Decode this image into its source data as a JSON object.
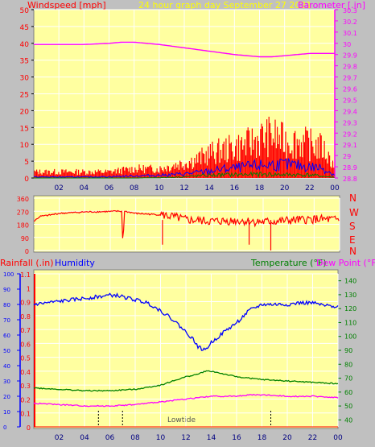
{
  "colors": {
    "background": "#c0c0c0",
    "plot_bg": "#ffffa0",
    "wind": "#ff0000",
    "gust_fill": "#ff0000",
    "wind_avg": "#0000ff",
    "wind_low": "#008000",
    "barometer": "#ff00ff",
    "title": "#ffff00",
    "humidity": "#0000ff",
    "temperature": "#008000",
    "dewpoint": "#ff00ff",
    "rainfall": "#ff0000",
    "grid": "#ffffff",
    "tide_marks": "#000000"
  },
  "header": {
    "wind_label": "Windspeed [mph]",
    "title": "24 hour graph day   September 27 2021",
    "baro_label": "Barometer [.in]"
  },
  "mid_header": {
    "rain_label": "Rainfall (.in)",
    "humidity_label": "Humidity",
    "temp_label": "Temperature (°F)",
    "dew_label": "Dew Point (°F)"
  },
  "tide_label": "Lowtide",
  "direction_letters": [
    "N",
    "W",
    "S",
    "E",
    "N"
  ],
  "chart_data": [
    {
      "type": "line",
      "id": "wind_baro",
      "x_ticks": [
        "02",
        "04",
        "06",
        "08",
        "10",
        "12",
        "14",
        "16",
        "18",
        "20",
        "22",
        "00"
      ],
      "y_left_ticks": [
        "0",
        "5",
        "10",
        "15",
        "20",
        "25",
        "30",
        "35",
        "40",
        "45",
        "50"
      ],
      "ylim_left": [
        0,
        50
      ],
      "y_right_ticks": [
        "28.8",
        "28.9",
        "29",
        "29.1",
        "29.2",
        "29.3",
        "29.4",
        "29.5",
        "29.6",
        "29.7",
        "29.8",
        "29.9",
        "30",
        "30.1",
        "30.2",
        "30.3"
      ],
      "ylim_right": [
        28.8,
        30.3
      ],
      "series": [
        {
          "name": "Barometer",
          "axis": "right",
          "x": [
            0,
            2,
            4,
            6,
            7,
            8,
            9,
            10,
            12,
            14,
            16,
            17,
            18,
            19,
            20,
            22,
            24
          ],
          "values": [
            29.99,
            29.99,
            29.99,
            30.0,
            30.01,
            30.01,
            30.0,
            29.99,
            29.96,
            29.93,
            29.9,
            29.89,
            29.88,
            29.88,
            29.89,
            29.91,
            29.91
          ]
        },
        {
          "name": "Gust",
          "axis": "left",
          "x": [
            0,
            2,
            4,
            6,
            8,
            10,
            11,
            12,
            13,
            14,
            15,
            16,
            17,
            18,
            19,
            20,
            21,
            22,
            23,
            24
          ],
          "values": [
            2,
            2,
            2,
            2,
            3,
            3,
            4,
            5,
            6,
            8,
            9,
            10,
            11,
            13,
            14,
            12,
            12,
            11,
            10,
            4
          ]
        },
        {
          "name": "Wind",
          "axis": "left",
          "x": [
            0,
            2,
            4,
            6,
            8,
            10,
            12,
            13,
            14,
            15,
            16,
            17,
            18,
            19,
            20,
            21,
            22,
            23,
            24
          ],
          "values": [
            0.3,
            0.3,
            0.3,
            0.4,
            0.6,
            0.8,
            1.2,
            1.6,
            2,
            2.6,
            2.9,
            3.3,
            3.7,
            4,
            4,
            3.7,
            3.3,
            3,
            0.9
          ]
        },
        {
          "name": "Wind Low",
          "axis": "left",
          "x": [
            0,
            2,
            4,
            6,
            8,
            10,
            12,
            14,
            16,
            18,
            20,
            22,
            24
          ],
          "values": [
            0,
            0,
            0,
            0,
            0,
            0.1,
            0.4,
            0.9,
            1.1,
            1.2,
            1.1,
            1,
            0.2
          ]
        }
      ]
    },
    {
      "type": "line",
      "id": "wind_direction",
      "x_ticks": [
        "02",
        "04",
        "06",
        "08",
        "10",
        "12",
        "14",
        "16",
        "18",
        "20",
        "22",
        "00"
      ],
      "y_ticks": [
        "360",
        "270",
        "180",
        "90",
        "0"
      ],
      "ylim": [
        0,
        360
      ],
      "series": [
        {
          "name": "Direction",
          "x": [
            0,
            0.5,
            1,
            2,
            4,
            6,
            6.5,
            6.9,
            7.0,
            7.1,
            8,
            10,
            11,
            12,
            14,
            16,
            18,
            20,
            22,
            24
          ],
          "values": [
            200,
            235,
            240,
            255,
            265,
            268,
            270,
            270,
            15,
            270,
            255,
            245,
            230,
            210,
            200,
            205,
            195,
            205,
            215,
            210
          ]
        }
      ]
    },
    {
      "type": "line",
      "id": "humidity_temp",
      "x_ticks": [
        "02",
        "04",
        "06",
        "08",
        "10",
        "12",
        "14",
        "16",
        "18",
        "20",
        "22",
        "00"
      ],
      "y_humidity_ticks": [
        "0",
        "10",
        "20",
        "30",
        "40",
        "50",
        "60",
        "70",
        "80",
        "90",
        "100"
      ],
      "ylim_humidity": [
        0,
        100
      ],
      "y_rain_ticks": [
        "0",
        "0.1",
        "0.2",
        "0.3",
        "0.4",
        "0.5",
        "0.6",
        "0.7",
        "0.8",
        "0.9",
        "1",
        "1.1"
      ],
      "ylim_rain": [
        0,
        1.1
      ],
      "y_temp_ticks": [
        "40",
        "50",
        "60",
        "70",
        "80",
        "90",
        "100",
        "110",
        "120",
        "130",
        "140"
      ],
      "ylim_temp": [
        35,
        145
      ],
      "series": [
        {
          "name": "Humidity",
          "axis": "humidity",
          "x": [
            0,
            1,
            2,
            3,
            4,
            5,
            6,
            6.5,
            7,
            8,
            9,
            10,
            11,
            12,
            12.5,
            13,
            13.5,
            14,
            15,
            16,
            17,
            18,
            19,
            20,
            21,
            22,
            23,
            24
          ],
          "values": [
            80,
            81,
            82,
            83,
            84,
            85,
            86,
            86,
            85,
            83,
            81,
            76,
            70,
            62,
            58,
            52,
            50,
            55,
            62,
            68,
            76,
            80,
            80,
            80,
            81,
            81,
            79,
            79
          ]
        },
        {
          "name": "Temperature",
          "axis": "temp",
          "x": [
            0,
            2,
            4,
            6,
            8,
            10,
            11,
            12,
            13,
            13.5,
            14,
            15,
            16,
            17,
            18,
            20,
            22,
            24
          ],
          "values": [
            63,
            62,
            61,
            61,
            62,
            65,
            68,
            71,
            73,
            75,
            75,
            73,
            71,
            70,
            69,
            68,
            67,
            66
          ]
        },
        {
          "name": "Dew Point",
          "axis": "temp",
          "x": [
            0,
            2,
            4,
            6,
            8,
            10,
            12,
            14,
            16,
            17,
            18,
            20,
            22,
            24
          ],
          "values": [
            52,
            51,
            50,
            50,
            51,
            53,
            55,
            57,
            57,
            58,
            58,
            57,
            57,
            56
          ]
        },
        {
          "name": "Rainfall",
          "axis": "rain",
          "x": [
            0,
            24
          ],
          "values": [
            0,
            0
          ]
        }
      ],
      "tide_marks_x": [
        5.1,
        7.0,
        18.7
      ]
    }
  ]
}
